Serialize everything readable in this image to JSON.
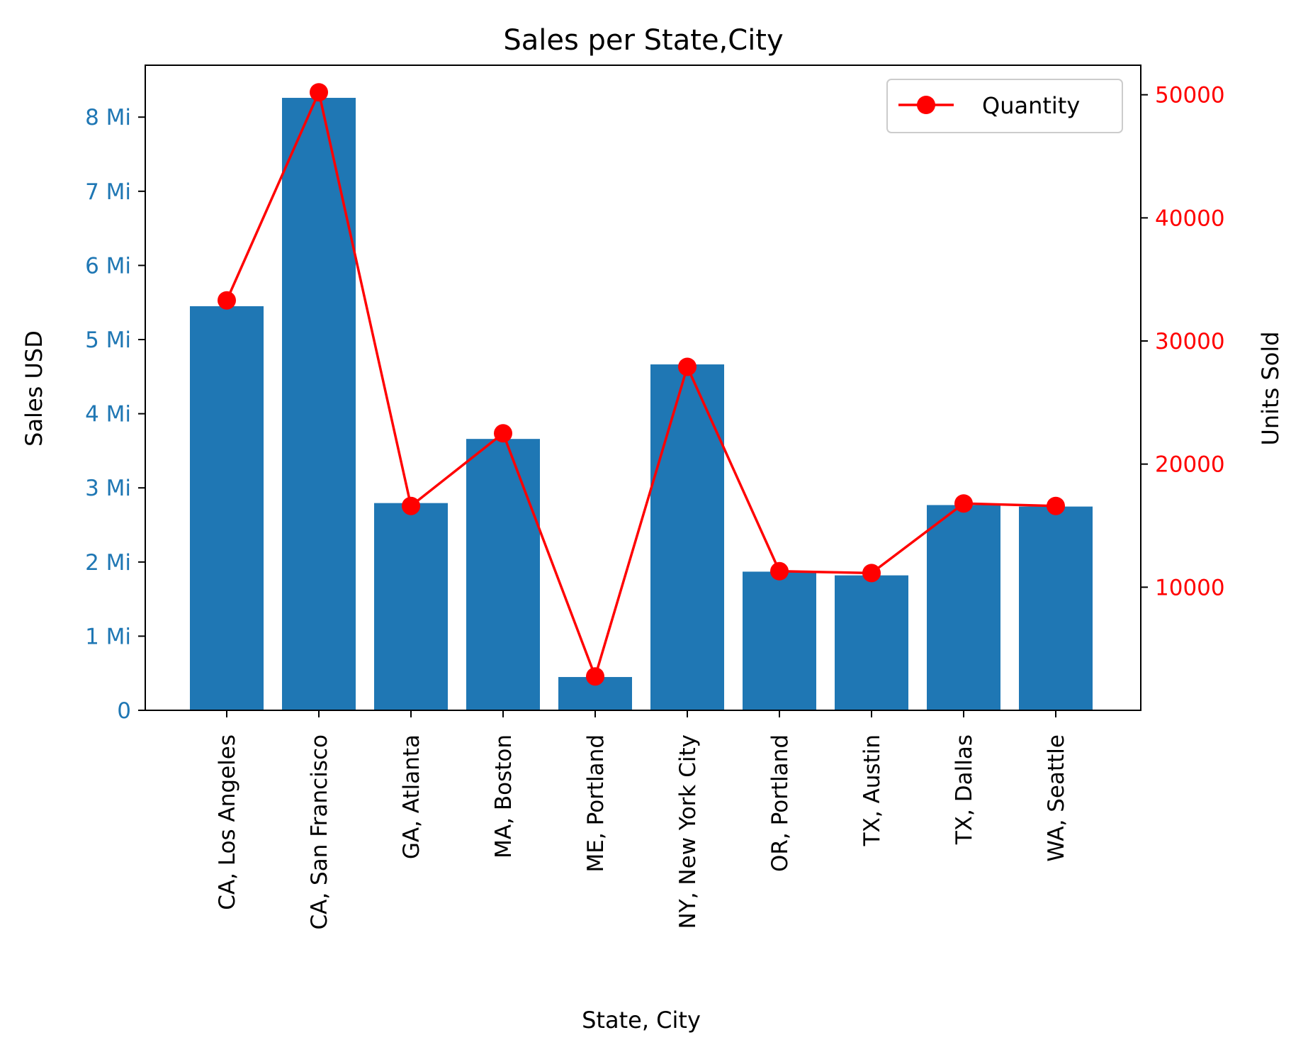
{
  "chart_data": {
    "type": "bar",
    "title": "Sales per State,City",
    "xlabel": "State, City",
    "ylabel": "Sales USD",
    "y2label": "Units Sold",
    "categories": [
      "CA, Los Angeles",
      "CA, San Francisco",
      "GA, Atlanta",
      "MA, Boston",
      "ME, Portland",
      "NY, New York City",
      "OR, Portland",
      "TX, Austin",
      "TX, Dallas",
      "WA, Seattle"
    ],
    "series": [
      {
        "type": "bar",
        "axis": "left",
        "color": "#1f77b4",
        "values": [
          5450000,
          8260000,
          2795000,
          3660000,
          449000,
          4665000,
          1870000,
          1820000,
          2768000,
          2748000
        ]
      },
      {
        "type": "line",
        "axis": "right",
        "name": "Quantity",
        "color": "#ff0000",
        "marker": "circle",
        "values": [
          33300,
          50200,
          16600,
          22500,
          2750,
          27900,
          11300,
          11150,
          16800,
          16600
        ]
      }
    ],
    "ylim": [
      0,
      8.7
    ],
    "y2lim": [
      0,
      52400
    ],
    "y_ticks": [
      {
        "value": 0,
        "label": "0"
      },
      {
        "value": 1,
        "label": "1 Mi"
      },
      {
        "value": 2,
        "label": "2 Mi"
      },
      {
        "value": 3,
        "label": "3 Mi"
      },
      {
        "value": 4,
        "label": "4 Mi"
      },
      {
        "value": 5,
        "label": "5 Mi"
      },
      {
        "value": 6,
        "label": "6 Mi"
      },
      {
        "value": 7,
        "label": "7 Mi"
      },
      {
        "value": 8,
        "label": "8 Mi"
      }
    ],
    "y2_ticks": [
      {
        "value": 10000,
        "label": "10000"
      },
      {
        "value": 20000,
        "label": "20000"
      },
      {
        "value": 30000,
        "label": "30000"
      },
      {
        "value": 40000,
        "label": "40000"
      },
      {
        "value": 50000,
        "label": "50000"
      }
    ],
    "y_tick_color": "#1f77b4",
    "y2_tick_color": "#ff0000",
    "grid": false,
    "legend": {
      "position": "top-right",
      "entries": [
        "Quantity"
      ]
    }
  }
}
